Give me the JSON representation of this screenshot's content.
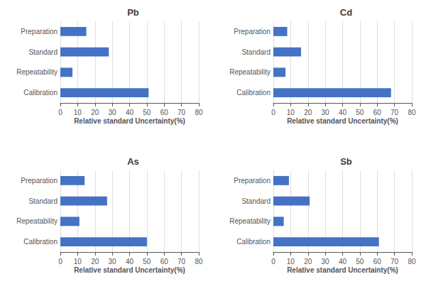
{
  "chart_data": [
    {
      "type": "bar",
      "title": "Pb",
      "orientation": "horizontal",
      "categories": [
        "Preparation",
        "Standard",
        "Repeatability",
        "Calibration"
      ],
      "values": [
        15,
        28,
        7,
        51
      ],
      "color": "#4472C4",
      "xlabel": "Relative standard Uncertainty(%)",
      "xlim": [
        0,
        80
      ],
      "xticks": [
        0,
        10,
        20,
        30,
        40,
        50,
        60,
        70,
        80
      ],
      "grid": true
    },
    {
      "type": "bar",
      "title": "Cd",
      "orientation": "horizontal",
      "categories": [
        "Preparation",
        "Standard",
        "Repeatability",
        "Calibration"
      ],
      "values": [
        8,
        16,
        7,
        68
      ],
      "color": "#4472C4",
      "xlabel": "Relative standard Uncertainty(%)",
      "xlim": [
        0,
        80
      ],
      "xticks": [
        0,
        10,
        20,
        30,
        40,
        50,
        60,
        70,
        80
      ],
      "grid": true
    },
    {
      "type": "bar",
      "title": "As",
      "orientation": "horizontal",
      "categories": [
        "Preparation",
        "Standard",
        "Repeatability",
        "Calibration"
      ],
      "values": [
        14,
        27,
        11,
        50
      ],
      "color": "#4472C4",
      "xlabel": "Relative standard Uncertainty(%)",
      "xlim": [
        0,
        80
      ],
      "xticks": [
        0,
        10,
        20,
        30,
        40,
        50,
        60,
        70,
        80
      ],
      "grid": true
    },
    {
      "type": "bar",
      "title": "Sb",
      "orientation": "horizontal",
      "categories": [
        "Preparation",
        "Standard",
        "Repeatability",
        "Calibration"
      ],
      "values": [
        9,
        21,
        6,
        61
      ],
      "color": "#4472C4",
      "xlabel": "Relative standard Uncertainty(%)",
      "xlim": [
        0,
        80
      ],
      "xticks": [
        0,
        10,
        20,
        30,
        40,
        50,
        60,
        70,
        80
      ],
      "grid": true
    }
  ]
}
